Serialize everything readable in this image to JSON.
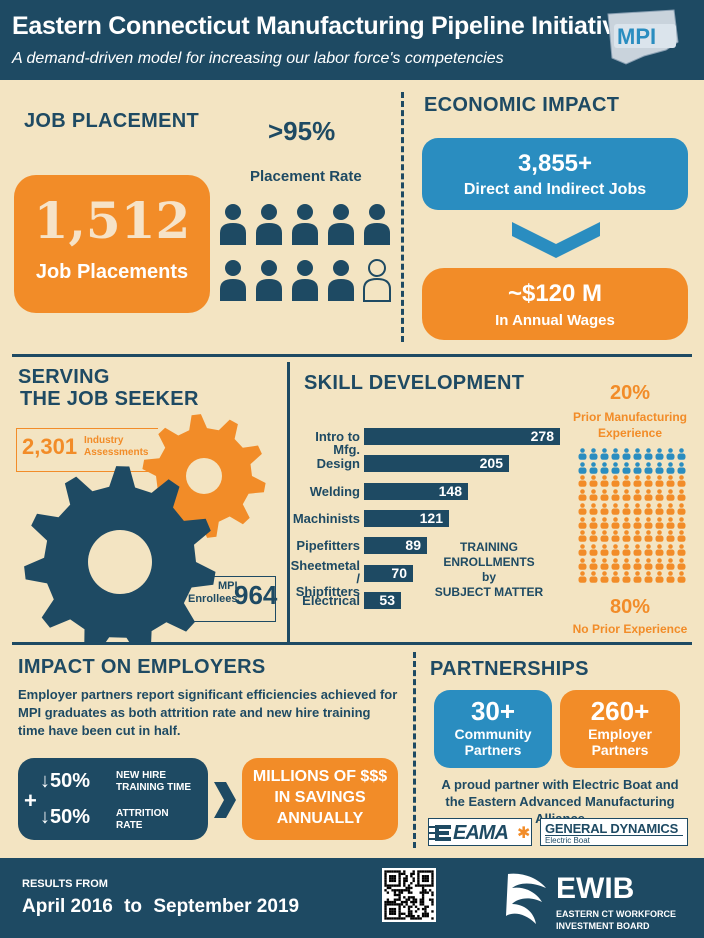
{
  "header": {
    "title": "Eastern Connecticut Manufacturing Pipeline Initiative",
    "subtitle": "A demand-driven model for increasing our labor force's competencies",
    "logo_text": "MPI"
  },
  "job_placement": {
    "heading": "JOB PLACEMENT",
    "count": "1,512",
    "count_label": "Job Placements",
    "rate_value": ">95%",
    "rate_label": "Placement Rate",
    "people_filled": 9,
    "people_total": 10
  },
  "economic_impact": {
    "heading": "ECONOMIC IMPACT",
    "jobs_value": "3,855+",
    "jobs_label": "Direct and Indirect Jobs",
    "wages_value": "~$120 M",
    "wages_label": "In Annual Wages"
  },
  "job_seeker": {
    "heading_line1": "SERVING",
    "heading_line2": "THE JOB SEEKER",
    "assessments_value": "2,301",
    "assessments_label_1": "Industry",
    "assessments_label_2": "Assessments",
    "enrollees_label_1": "MPI",
    "enrollees_label_2": "Enrollees",
    "enrollees_value": "964"
  },
  "skill_development": {
    "heading": "SKILL DEVELOPMENT",
    "caption_1": "TRAINING",
    "caption_2": "ENROLLMENTS",
    "caption_3": "by",
    "caption_4": "SUBJECT MATTER",
    "prior_pct": "20%",
    "prior_label_1": "Prior Manufacturing",
    "prior_label_2": "Experience",
    "no_prior_pct": "80%",
    "no_prior_label": "No Prior Experience"
  },
  "chart_data": {
    "type": "bar",
    "orientation": "horizontal",
    "categories": [
      "Intro to Mfg.",
      "Design",
      "Welding",
      "Machinists",
      "Pipefitters",
      "Sheetmetal / Shipfitters",
      "Electrical"
    ],
    "values": [
      278,
      205,
      148,
      121,
      89,
      70,
      53
    ],
    "title": "TRAINING ENROLLMENTS by SUBJECT MATTER",
    "xlabel": "",
    "ylabel": "",
    "grid": false
  },
  "employers": {
    "heading": "IMPACT ON EMPLOYERS",
    "description": "Employer partners report significant efficiencies achieved for MPI graduates as both attrition rate and new hire training time have been cut in half.",
    "stat1_value": "↓50%",
    "stat1_label_1": "NEW HIRE",
    "stat1_label_2": "TRAINING TIME",
    "stat2_value": "↓50%",
    "stat2_label_1": "ATTRITION",
    "stat2_label_2": "RATE",
    "plus": "+",
    "savings_1": "MILLIONS OF $$$",
    "savings_2": "IN SAVINGS",
    "savings_3": "ANNUALLY"
  },
  "partnerships": {
    "heading": "PARTNERSHIPS",
    "community_value": "30+",
    "community_label_1": "Community",
    "community_label_2": "Partners",
    "employer_value": "260+",
    "employer_label_1": "Employer",
    "employer_label_2": "Partners",
    "text_1": "A proud partner with Electric Boat and",
    "text_2": "the Eastern Advanced Manufacturing Alliance",
    "eama_logo": "EAMA",
    "gd_logo_1": "GENERAL DYNAMICS",
    "gd_logo_2": "Electric Boat"
  },
  "footer": {
    "results_from": "RESULTS FROM",
    "date_start": "April 2016",
    "date_to": "to",
    "date_end": "September 2019",
    "ewib": "EWIB",
    "ewib_sub_1": "EASTERN CT WORKFORCE",
    "ewib_sub_2": "INVESTMENT BOARD"
  },
  "colors": {
    "navy": "#1e4a63",
    "orange": "#f28c28",
    "blue": "#2a8dc0",
    "background": "#f3e4c2"
  }
}
